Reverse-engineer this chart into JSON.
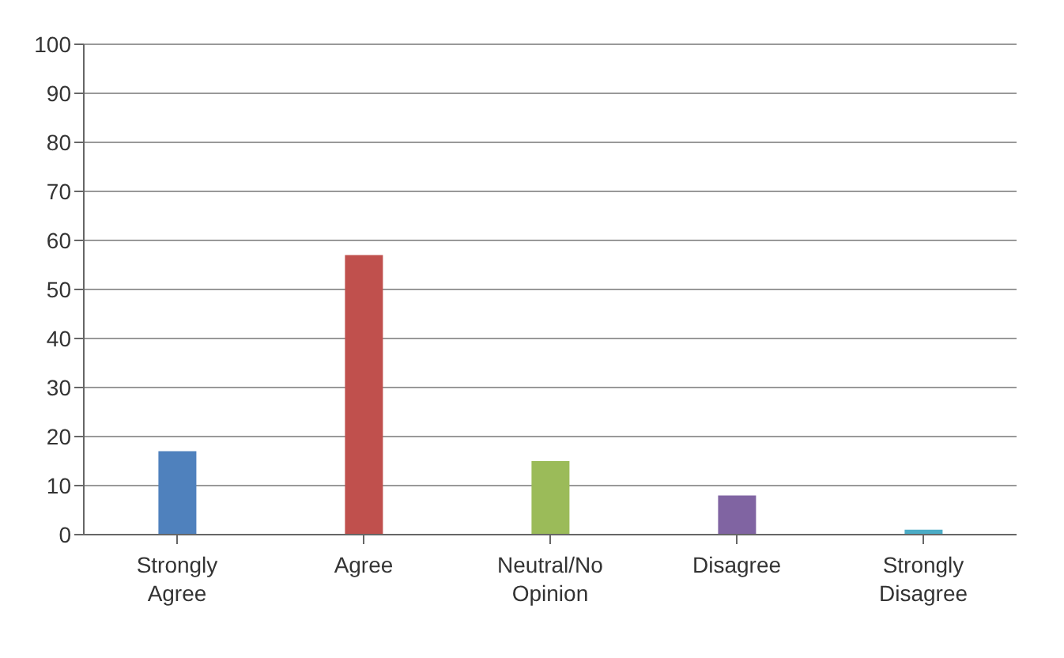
{
  "chart_data": {
    "type": "bar",
    "categories": [
      "Strongly Agree",
      "Agree",
      "Neutral/No Opinion",
      "Disagree",
      "Strongly Disagree"
    ],
    "values": [
      17,
      57,
      15,
      8,
      1
    ],
    "colors": [
      "#4f81bd",
      "#c0504d",
      "#9bbb59",
      "#8064a2",
      "#4bacc6"
    ],
    "ylim": [
      0,
      100
    ],
    "yticks": [
      0,
      10,
      20,
      30,
      40,
      50,
      60,
      70,
      80,
      90,
      100
    ],
    "grid": "y",
    "legend": false
  }
}
